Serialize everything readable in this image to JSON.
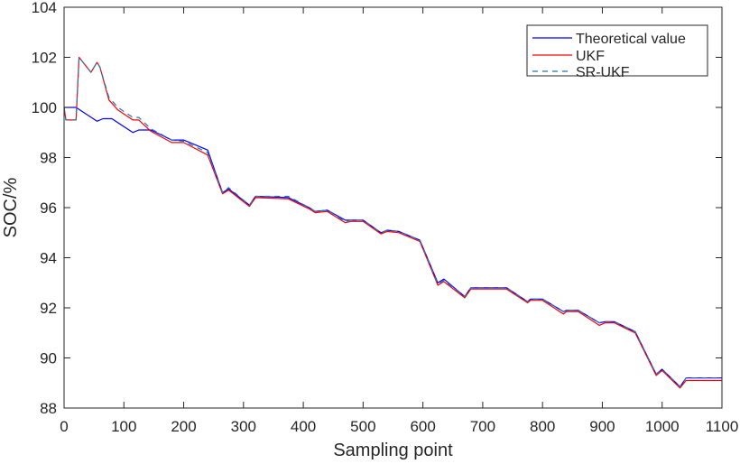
{
  "chart_data": {
    "type": "line",
    "title": "",
    "xlabel": "Sampling point",
    "ylabel": "SOC/%",
    "xlim": [
      0,
      1100
    ],
    "ylim": [
      88,
      104
    ],
    "xticks": [
      0,
      100,
      200,
      300,
      400,
      500,
      600,
      700,
      800,
      900,
      1000,
      1100
    ],
    "yticks": [
      88,
      90,
      92,
      94,
      96,
      98,
      100,
      102,
      104
    ],
    "grid": false,
    "legend_position": "upper right",
    "series": [
      {
        "name": "Theoretical value",
        "color": "#0000ff",
        "style": "solid",
        "x": [
          0,
          20,
          55,
          65,
          80,
          115,
          125,
          145,
          180,
          200,
          240,
          265,
          275,
          310,
          320,
          375,
          410,
          420,
          440,
          470,
          480,
          500,
          530,
          540,
          560,
          595,
          625,
          635,
          670,
          680,
          740,
          775,
          780,
          800,
          835,
          840,
          860,
          895,
          905,
          920,
          955,
          990,
          1000,
          1030,
          1040,
          1100
        ],
        "values": [
          100,
          100,
          99.45,
          99.55,
          99.55,
          99.0,
          99.1,
          99.1,
          98.7,
          98.7,
          98.3,
          96.6,
          96.75,
          96.1,
          96.45,
          96.4,
          96.0,
          95.85,
          95.9,
          95.5,
          95.5,
          95.5,
          95.0,
          95.1,
          95.05,
          94.7,
          93.0,
          93.15,
          92.45,
          92.8,
          92.8,
          92.25,
          92.35,
          92.35,
          91.85,
          91.9,
          91.9,
          91.4,
          91.45,
          91.45,
          91.05,
          89.35,
          89.55,
          88.85,
          89.2,
          89.2
        ]
      },
      {
        "name": "UKF",
        "color": "#ff0000",
        "style": "solid",
        "x": [
          0,
          3,
          20,
          25,
          45,
          55,
          60,
          75,
          90,
          115,
          125,
          145,
          180,
          200,
          240,
          265,
          275,
          310,
          320,
          375,
          410,
          420,
          440,
          470,
          480,
          500,
          530,
          540,
          560,
          595,
          625,
          635,
          670,
          680,
          740,
          775,
          780,
          800,
          835,
          840,
          860,
          895,
          905,
          920,
          955,
          990,
          1000,
          1030,
          1040,
          1100
        ],
        "values": [
          100,
          99.5,
          99.5,
          102.0,
          101.4,
          101.8,
          101.6,
          100.3,
          99.9,
          99.5,
          99.5,
          99.05,
          98.6,
          98.6,
          98.1,
          96.55,
          96.7,
          96.05,
          96.4,
          96.35,
          95.95,
          95.8,
          95.85,
          95.4,
          95.45,
          95.45,
          94.95,
          95.05,
          95.0,
          94.65,
          92.9,
          93.05,
          92.4,
          92.75,
          92.75,
          92.2,
          92.3,
          92.3,
          91.75,
          91.85,
          91.85,
          91.3,
          91.4,
          91.4,
          91.0,
          89.3,
          89.5,
          88.8,
          89.1,
          89.1
        ]
      },
      {
        "name": "SR-UKF",
        "color": "#1f77b4",
        "style": "dashed",
        "x": [
          0,
          3,
          20,
          25,
          45,
          55,
          60,
          75,
          90,
          115,
          125,
          145,
          180,
          200,
          240,
          265,
          275,
          310,
          320,
          375,
          410,
          420,
          440,
          470,
          480,
          500,
          530,
          540,
          560,
          595,
          625,
          635,
          670,
          680,
          740,
          775,
          780,
          800,
          835,
          840,
          860,
          895,
          905,
          920,
          955,
          990,
          1000,
          1030,
          1040,
          1100
        ],
        "values": [
          100,
          99.5,
          99.5,
          102.0,
          101.4,
          101.8,
          101.6,
          100.4,
          100.0,
          99.6,
          99.6,
          99.15,
          98.7,
          98.65,
          98.2,
          96.6,
          96.8,
          96.1,
          96.45,
          96.45,
          96.0,
          95.85,
          95.9,
          95.45,
          95.5,
          95.5,
          95.0,
          95.1,
          95.05,
          94.7,
          92.95,
          93.1,
          92.45,
          92.8,
          92.8,
          92.25,
          92.35,
          92.35,
          91.85,
          91.9,
          91.9,
          91.4,
          91.45,
          91.45,
          91.05,
          89.35,
          89.55,
          88.85,
          89.2,
          89.2
        ]
      }
    ]
  },
  "legend": {
    "items": [
      {
        "label": "Theoretical value",
        "color": "#0000ff",
        "style": "solid"
      },
      {
        "label": "UKF",
        "color": "#ff0000",
        "style": "solid"
      },
      {
        "label": "SR-UKF",
        "color": "#1f77b4",
        "style": "dashed"
      }
    ]
  }
}
